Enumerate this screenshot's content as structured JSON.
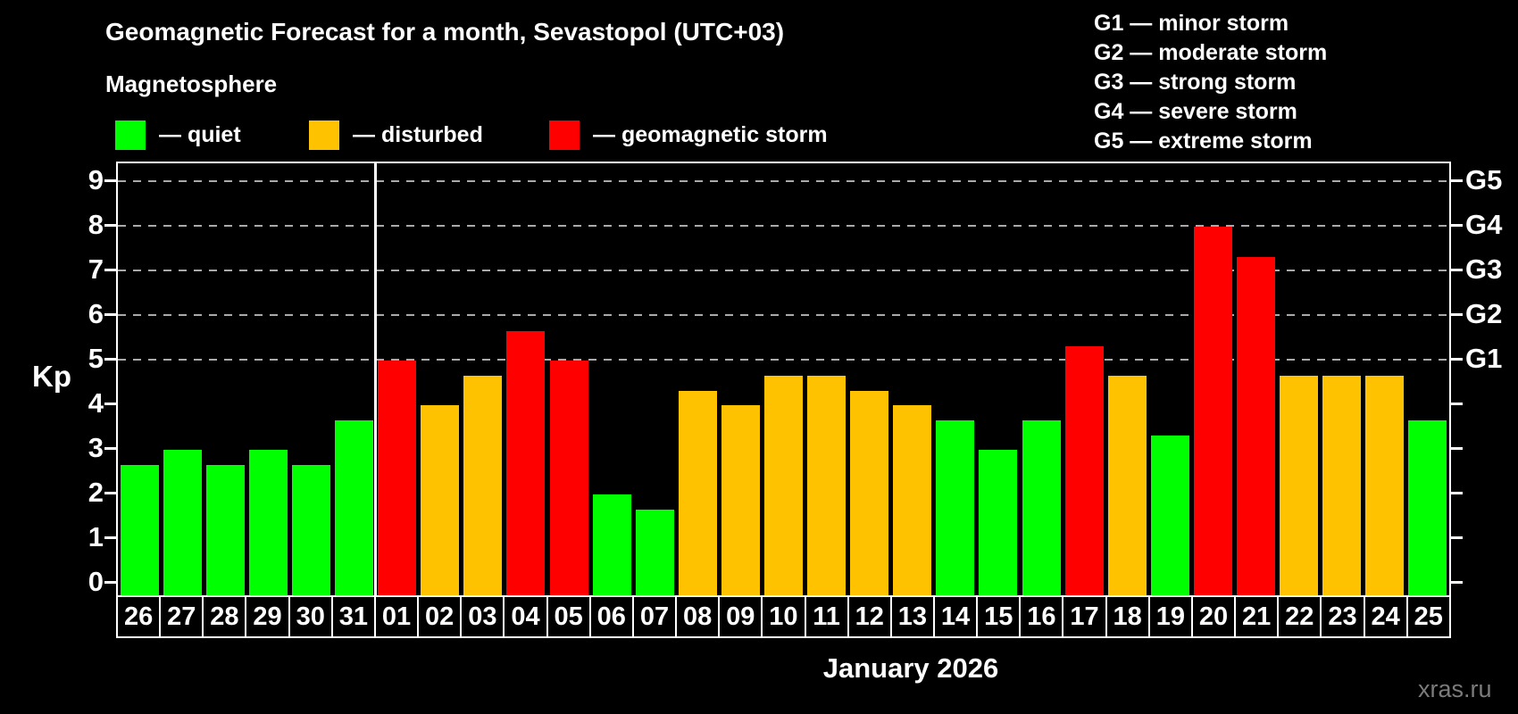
{
  "page": {
    "watermark": "xras.ru",
    "background": "#000000"
  },
  "header": {
    "title": "Geomagnetic Forecast for a month, Sevastopol (UTC+03)",
    "subtitle": "Magnetosphere",
    "legend": [
      {
        "status": "quiet",
        "label": "— quiet",
        "color": "#00ff00"
      },
      {
        "status": "disturbed",
        "label": "— disturbed",
        "color": "#ffc200"
      },
      {
        "status": "storm",
        "label": "— geomagnetic storm",
        "color": "#ff0000"
      }
    ],
    "g_scale_legend": [
      "G1 — minor storm",
      "G2 — moderate storm",
      "G3 — strong storm",
      "G4 — severe storm",
      "G5 — extreme storm"
    ]
  },
  "chart_data": {
    "type": "bar",
    "title": "Geomagnetic Forecast for a month, Sevastopol (UTC+03)",
    "subtitle": "Magnetosphere",
    "xlabel": "January 2026",
    "ylabel": "Kp",
    "ylim": [
      0,
      9.4
    ],
    "y_ticks": [
      0,
      1,
      2,
      3,
      4,
      5,
      6,
      7,
      8,
      9
    ],
    "gridlines_at_kp": [
      5,
      6,
      7,
      8,
      9
    ],
    "grid": "dashed horizontal at G-storm levels only",
    "legend_position": "top",
    "right_axis_labels": [
      {
        "kp": 5,
        "label": "G1"
      },
      {
        "kp": 6,
        "label": "G2"
      },
      {
        "kp": 7,
        "label": "G3"
      },
      {
        "kp": 8,
        "label": "G4"
      },
      {
        "kp": 9,
        "label": "G5"
      }
    ],
    "divider_after_index": 5,
    "status_colors": {
      "quiet": "#00ff00",
      "disturbed": "#ffc200",
      "storm": "#ff0000"
    },
    "categories": [
      "26",
      "27",
      "28",
      "29",
      "30",
      "31",
      "01",
      "02",
      "03",
      "04",
      "05",
      "06",
      "07",
      "08",
      "09",
      "10",
      "11",
      "12",
      "13",
      "14",
      "15",
      "16",
      "17",
      "18",
      "19",
      "20",
      "21",
      "22",
      "23",
      "24",
      "25"
    ],
    "days": [
      {
        "date": "26",
        "kp": 2.67,
        "status": "quiet"
      },
      {
        "date": "27",
        "kp": 3.0,
        "status": "quiet"
      },
      {
        "date": "28",
        "kp": 2.67,
        "status": "quiet"
      },
      {
        "date": "29",
        "kp": 3.0,
        "status": "quiet"
      },
      {
        "date": "30",
        "kp": 2.67,
        "status": "quiet"
      },
      {
        "date": "31",
        "kp": 3.67,
        "status": "quiet"
      },
      {
        "date": "01",
        "kp": 5.0,
        "status": "storm"
      },
      {
        "date": "02",
        "kp": 4.0,
        "status": "disturbed"
      },
      {
        "date": "03",
        "kp": 4.67,
        "status": "disturbed"
      },
      {
        "date": "04",
        "kp": 5.67,
        "status": "storm"
      },
      {
        "date": "05",
        "kp": 5.0,
        "status": "storm"
      },
      {
        "date": "06",
        "kp": 2.0,
        "status": "quiet"
      },
      {
        "date": "07",
        "kp": 1.67,
        "status": "quiet"
      },
      {
        "date": "08",
        "kp": 4.33,
        "status": "disturbed"
      },
      {
        "date": "09",
        "kp": 4.0,
        "status": "disturbed"
      },
      {
        "date": "10",
        "kp": 4.67,
        "status": "disturbed"
      },
      {
        "date": "11",
        "kp": 4.67,
        "status": "disturbed"
      },
      {
        "date": "12",
        "kp": 4.33,
        "status": "disturbed"
      },
      {
        "date": "13",
        "kp": 4.0,
        "status": "disturbed"
      },
      {
        "date": "14",
        "kp": 3.67,
        "status": "quiet"
      },
      {
        "date": "15",
        "kp": 3.0,
        "status": "quiet"
      },
      {
        "date": "16",
        "kp": 3.67,
        "status": "quiet"
      },
      {
        "date": "17",
        "kp": 5.33,
        "status": "storm"
      },
      {
        "date": "18",
        "kp": 4.67,
        "status": "disturbed"
      },
      {
        "date": "19",
        "kp": 3.33,
        "status": "quiet"
      },
      {
        "date": "20",
        "kp": 8.0,
        "status": "storm"
      },
      {
        "date": "21",
        "kp": 7.33,
        "status": "storm"
      },
      {
        "date": "22",
        "kp": 4.67,
        "status": "disturbed"
      },
      {
        "date": "23",
        "kp": 4.67,
        "status": "disturbed"
      },
      {
        "date": "24",
        "kp": 4.67,
        "status": "disturbed"
      },
      {
        "date": "25",
        "kp": 3.67,
        "status": "quiet"
      }
    ]
  }
}
